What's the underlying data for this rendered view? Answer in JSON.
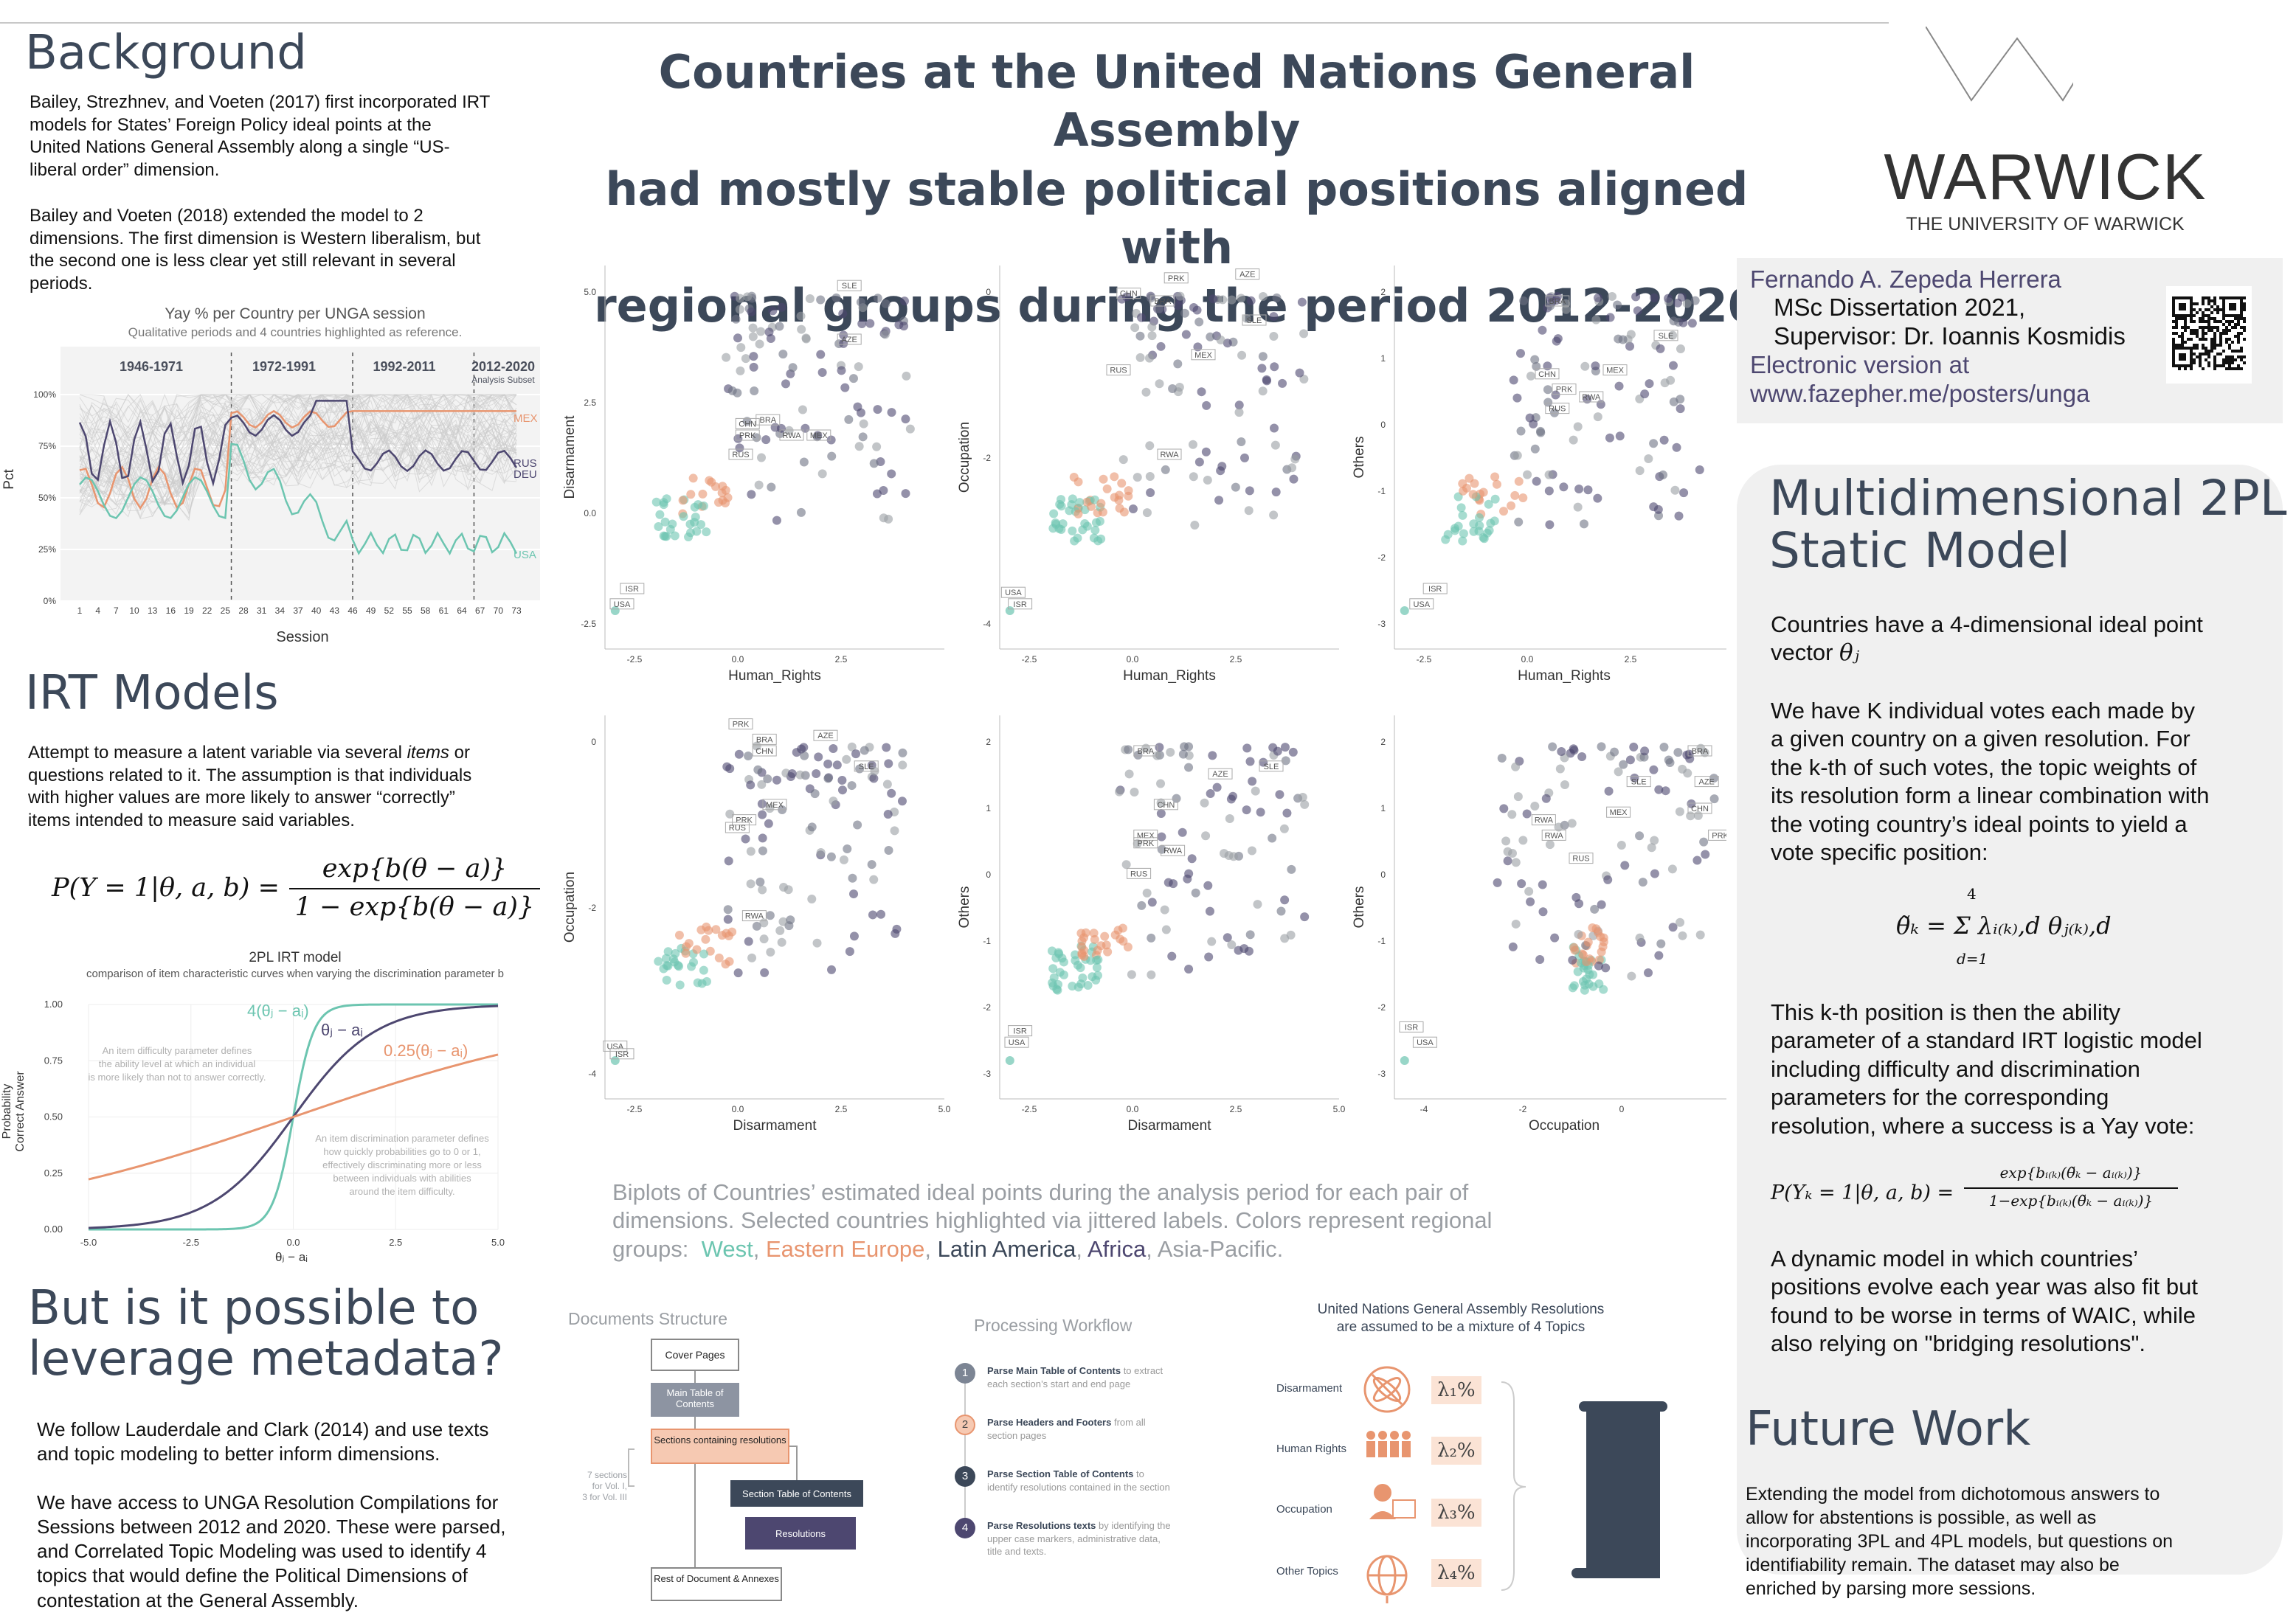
{
  "title": {
    "lines": [
      "Countries at the United Nations General Assembly",
      "had mostly stable political positions aligned with",
      "regional groups during the period 2012-2020"
    ]
  },
  "background": {
    "heading": "Background",
    "p1": [
      "Bailey, Strezhnev, and Voeten (2017) first incorporated IRT",
      "models for States’ Foreign Policy ideal points at the",
      "United Nations General Assembly along a single “US-",
      "liberal order” dimension."
    ],
    "p2": [
      "Bailey and Voeten (2018) extended the model to 2",
      "dimensions. The first dimension is Western liberalism, but",
      "the second one is less clear yet still relevant in several",
      "periods."
    ]
  },
  "yay_chart": {
    "title": "Yay % per Country per UNGA session",
    "subtitle": "Qualitative periods and 4 countries highlighted as reference.",
    "periods": [
      "1946-1971",
      "1972-1991",
      "1992-2011",
      "2012-2020"
    ],
    "period_note": "Analysis Subset",
    "ylabel": "Pct",
    "xlabel": "Session",
    "yticks": [
      "100%",
      "75%",
      "50%",
      "25%",
      "0%"
    ],
    "xticks": [
      "1",
      "4",
      "7",
      "10",
      "13",
      "16",
      "19",
      "22",
      "25",
      "28",
      "31",
      "34",
      "37",
      "40",
      "43",
      "46",
      "49",
      "52",
      "55",
      "58",
      "61",
      "64",
      "67",
      "70",
      "73"
    ],
    "labels": [
      "MEX",
      "RUS",
      "DEU",
      "USA"
    ],
    "colors": {
      "MEX": "#e8956f",
      "RUS": "#4d4770",
      "DEU": "#4d4770",
      "USA": "#6cc5b0"
    }
  },
  "irt": {
    "heading": "IRT Models",
    "p": [
      "Attempt to measure a latent variable via several ",
      "items",
      " or",
      "questions related to it. The assumption is that individuals",
      "with higher values are more likely to answer “correctly”",
      "items intended to measure said variables."
    ],
    "formula": {
      "lhs": "P(Y = 1|θ, a, b) =",
      "num": "exp{b(θ − a)}",
      "den": "1 − exp{b(θ − a)}"
    }
  },
  "irt_chart": {
    "title": "2PL IRT model",
    "subtitle": "comparison of item characteristic curves when varying the discrimination parameter b",
    "ylabel1": "Probability",
    "ylabel2": "Correct Answer",
    "xlabel": "θⱼ − aᵢ",
    "yticks": [
      "1.00",
      "0.75",
      "0.50",
      "0.25",
      "0.00"
    ],
    "xticks": [
      "-5.0",
      "-2.5",
      "0.0",
      "2.5",
      "5.0"
    ],
    "curves": [
      {
        "label": "4(θⱼ − aᵢ)",
        "b": 4,
        "color": "#6cc5b0"
      },
      {
        "label": "θⱼ − aᵢ",
        "b": 1,
        "color": "#4d4770"
      },
      {
        "label": "0.25(θⱼ − aᵢ)",
        "b": 0.25,
        "color": "#e8956f"
      }
    ],
    "note1": [
      "An item difficulty parameter defines",
      "the ability level at which an individual",
      "is more likely than not to answer correctly."
    ],
    "note2": [
      "An item discrimination parameter defines",
      "how quickly probabilities go to 0 or 1,",
      "effectively discriminating more or less",
      "between individuals with abilities",
      "around the item difficulty."
    ]
  },
  "metadata": {
    "heading": [
      "But is it possible to",
      "leverage metadata?"
    ],
    "p1": [
      "We follow Lauderdale and Clark (2014) and use texts",
      "and topic modeling to better inform dimensions."
    ],
    "p2": [
      "We have access to UNGA Resolution Compilations for",
      "Sessions between 2012 and 2020.  These were parsed,",
      "and Correlated Topic Modeling was used to identify 4",
      "topics that would define the Political Dimensions of",
      "contestation at the General Assembly."
    ]
  },
  "biplots": {
    "xlabels": [
      "Human_Rights",
      "Human_Rights",
      "Human_Rights",
      "Disarmament",
      "Disarmament",
      "Occupation"
    ],
    "ylabels": [
      "Disarmament",
      "Occupation",
      "Others",
      "Occupation",
      "Others",
      "Others"
    ],
    "caption1": [
      "Biplots of Countries’ estimated ideal points during the analysis period for each pair of",
      "dimensions. Selected countries highlighted via jittered labels. Colors represent regional"
    ],
    "caption_groups": "groups:",
    "groups": [
      {
        "name": "West",
        "color": "#6cc5b0"
      },
      {
        "name": "Eastern Europe",
        "color": "#e8956f"
      },
      {
        "name": "Latin America",
        "color": "#3c4859"
      },
      {
        "name": "Africa",
        "color": "#4d4770"
      },
      {
        "name": "Asia-Pacific.",
        "color": "#9a9ea3"
      }
    ],
    "colors": {
      "west": "#6cc5b0",
      "east": "#e8956f",
      "latin": "#6e7383",
      "africa": "#4d4770",
      "asia": "#9a9ea3"
    }
  },
  "docs": {
    "title": "Documents Structure",
    "boxes": [
      "Cover Pages",
      "Main Table of Contents",
      "Sections containing resolutions",
      "Section Table of Contents",
      "Resolutions",
      "Rest of Document & Annexes"
    ],
    "note": [
      "7 sections",
      "for Vol. I,",
      "3 for Vol. III"
    ]
  },
  "workflow": {
    "title": "Processing Workflow",
    "steps": [
      {
        "n": "1",
        "bold": "Parse Main Table of Contents",
        "rest1": " to extract",
        "rest2": "each section’s start and end page",
        "color": "#7c8594"
      },
      {
        "n": "2",
        "bold": "Parse Headers and Footers",
        "rest1": " from all",
        "rest2": "section pages",
        "color": "#e8956f"
      },
      {
        "n": "3",
        "bold": "Parse Section Table of Contents",
        "rest1": " to",
        "rest2": "identify resolutions contained in the section",
        "color": "#3c4859"
      },
      {
        "n": "4",
        "bold": "Parse Resolutions texts",
        "rest1": " by identifying the",
        "rest2": "upper case markers, administrative data,",
        "rest3": "title and texts.",
        "color": "#4d4770"
      }
    ]
  },
  "topics": {
    "title": [
      "United Nations General Assembly Resolutions",
      "are assumed to be a mixture of 4 Topics"
    ],
    "items": [
      {
        "label": "Disarmament",
        "lambda": "λ₁%",
        "icon": "atom-icon"
      },
      {
        "label": "Human Rights",
        "lambda": "λ₂%",
        "icon": "people-icon"
      },
      {
        "label": "Occupation",
        "lambda": "λ₃%",
        "icon": "worker-icon"
      },
      {
        "label": "Other Topics",
        "lambda": "λ₄%",
        "icon": "globe-icon"
      }
    ]
  },
  "logo": {
    "name": "WARWICK",
    "sub": "THE UNIVERSITY OF WARWICK"
  },
  "author": {
    "name": "Fernando A. Zepeda Herrera",
    "line2": "MSc Dissertation 2021,",
    "line3": "Supervisor: Dr. Ioannis Kosmidis",
    "line4": "Electronic version at",
    "url": "www.fazepher.me/posters/unga"
  },
  "model": {
    "heading": [
      "Multidimensional 2PL",
      "Static Model"
    ],
    "p1": [
      "Countries have a 4-dimensional ideal point",
      "vector "
    ],
    "p1_sym": "θⱼ",
    "p2": [
      "We have K individual votes each made by",
      "a given country on a given resolution. For",
      "the k-th of such votes, the topic weights of",
      "its resolution form a linear combination with",
      "the voting country’s ideal points to yield a",
      "vote specific position:"
    ],
    "eq1": "θ̃ₖ = Σ λᵢ₍ₖ₎,d θⱼ₍ₖ₎,d",
    "eq1_upper": "4",
    "eq1_lower": "d=1",
    "p3": [
      "This k-th position is then the ability",
      "parameter of a standard IRT logistic model",
      "including difficulty and discrimination",
      "parameters for the corresponding",
      "resolution, where a success is a Yay vote:"
    ],
    "eq2_lhs": "P(Yₖ = 1|θ, a, b) =",
    "eq2_num": "exp{bᵢ₍ₖ₎(θ̃ₖ − aᵢ₍ₖ₎)}",
    "eq2_den": "1−exp{bᵢ₍ₖ₎(θ̃ₖ − aᵢ₍ₖ₎)}",
    "p4": [
      "A dynamic model in which countries’",
      "positions evolve each year was also fit but",
      "found to be worse in terms of WAIC, while",
      "also relying on \"bridging resolutions\"."
    ]
  },
  "future": {
    "heading": "Future Work",
    "p": [
      "Extending the model from dichotomous answers to",
      "allow for abstentions is possible, as well as",
      "incorporating 3PL and 4PL models, but questions on",
      "identifiability remain. The dataset may also be",
      "enriched by parsing more sessions."
    ]
  }
}
